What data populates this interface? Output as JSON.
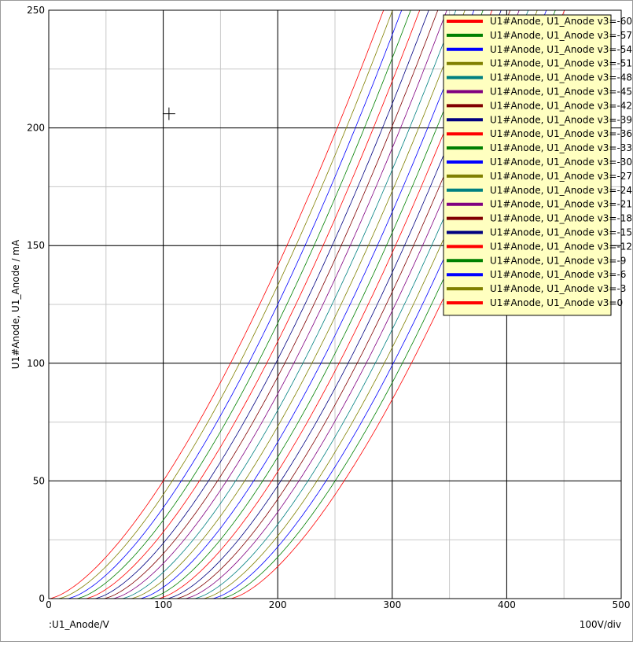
{
  "chart_data": {
    "type": "line",
    "title": "",
    "xlabel": ":U1_Anode/V",
    "ylabel": "U1#Anode, U1_Anode / mA",
    "x_scale_note": "100V/div",
    "xlim": [
      0,
      500
    ],
    "ylim": [
      0,
      250
    ],
    "x_ticks": [
      "0",
      "100",
      "200",
      "300",
      "400",
      "500"
    ],
    "y_ticks": [
      "0",
      "50",
      "100",
      "150",
      "200",
      "250"
    ],
    "grid": true,
    "legend_position": "top-right",
    "series_model": {
      "form": "y = k * max(0, x - x0)^1.5",
      "k": 0.05,
      "x0_at_v3_0": 0,
      "x0_step_per_minus_3": 7.9
    },
    "series": [
      {
        "name": "U1#Anode, U1_Anode v3=-60",
        "v3": -60,
        "color": "#ff0000"
      },
      {
        "name": "U1#Anode, U1_Anode v3=-57",
        "v3": -57,
        "color": "#008000"
      },
      {
        "name": "U1#Anode, U1_Anode v3=-54",
        "v3": -54,
        "color": "#0000ff"
      },
      {
        "name": "U1#Anode, U1_Anode v3=-51",
        "v3": -51,
        "color": "#808000"
      },
      {
        "name": "U1#Anode, U1_Anode v3=-48",
        "v3": -48,
        "color": "#008080"
      },
      {
        "name": "U1#Anode, U1_Anode v3=-45",
        "v3": -45,
        "color": "#800080"
      },
      {
        "name": "U1#Anode, U1_Anode v3=-42",
        "v3": -42,
        "color": "#800000"
      },
      {
        "name": "U1#Anode, U1_Anode v3=-39",
        "v3": -39,
        "color": "#000080"
      },
      {
        "name": "U1#Anode, U1_Anode v3=-36",
        "v3": -36,
        "color": "#ff0000"
      },
      {
        "name": "U1#Anode, U1_Anode v3=-33",
        "v3": -33,
        "color": "#008000"
      },
      {
        "name": "U1#Anode, U1_Anode v3=-30",
        "v3": -30,
        "color": "#0000ff"
      },
      {
        "name": "U1#Anode, U1_Anode v3=-27",
        "v3": -27,
        "color": "#808000"
      },
      {
        "name": "U1#Anode, U1_Anode v3=-24",
        "v3": -24,
        "color": "#008080"
      },
      {
        "name": "U1#Anode, U1_Anode v3=-21",
        "v3": -21,
        "color": "#800080"
      },
      {
        "name": "U1#Anode, U1_Anode v3=-18",
        "v3": -18,
        "color": "#800000"
      },
      {
        "name": "U1#Anode, U1_Anode v3=-15",
        "v3": -15,
        "color": "#000080"
      },
      {
        "name": "U1#Anode, U1_Anode v3=-12",
        "v3": -12,
        "color": "#ff0000"
      },
      {
        "name": "U1#Anode, U1_Anode v3=-9",
        "v3": -9,
        "color": "#008000"
      },
      {
        "name": "U1#Anode, U1_Anode v3=-6",
        "v3": -6,
        "color": "#0000ff"
      },
      {
        "name": "U1#Anode, U1_Anode v3=-3",
        "v3": -3,
        "color": "#808000"
      },
      {
        "name": "U1#Anode, U1_Anode v3=0",
        "v3": 0,
        "color": "#ff0000"
      }
    ],
    "cursor": {
      "x": 105,
      "y": 206
    }
  },
  "colors": {
    "background": "#ffffff",
    "grid_major": "#000000",
    "grid_minor": "#c8c8c8",
    "legend_background": "#ffffc0"
  }
}
